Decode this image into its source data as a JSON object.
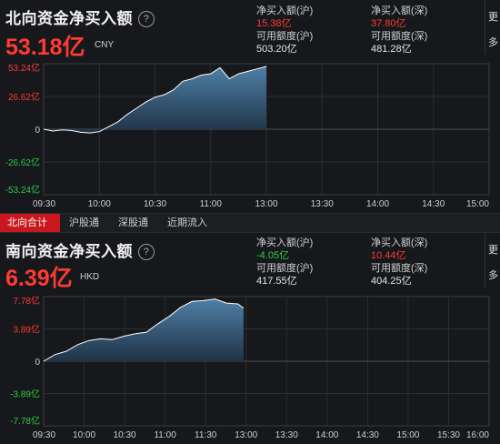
{
  "north": {
    "title": "北向资金净买入额",
    "help_icon": "?",
    "big_value": "53.18亿",
    "currency": "CNY",
    "stats": {
      "buy_sh_label": "净买入额(沪)",
      "buy_sh_value": "15.38亿",
      "buy_sz_label": "净买入额(深)",
      "buy_sz_value": "37.80亿",
      "avail_sh_label": "可用额度(沪)",
      "avail_sh_value": "503.20亿",
      "avail_sz_label": "可用额度(深)",
      "avail_sz_value": "481.28亿"
    },
    "more": [
      "更",
      "多"
    ]
  },
  "south": {
    "title": "南向资金净买入额",
    "help_icon": "?",
    "big_value": "6.39亿",
    "currency": "HKD",
    "stats": {
      "buy_sh_label": "净买入额(沪)",
      "buy_sh_value": "-4.05亿",
      "buy_sz_label": "净买入额(深)",
      "buy_sz_value": "10.44亿",
      "avail_sh_label": "可用额度(沪)",
      "avail_sh_value": "417.55亿",
      "avail_sz_label": "可用额度(深)",
      "avail_sz_value": "404.25亿"
    },
    "more": [
      "更",
      "多"
    ]
  },
  "tabs": [
    "北向合计",
    "沪股通",
    "深股通",
    "近期流入"
  ],
  "colors": {
    "up": "#ff3b30",
    "down": "#2ecc40",
    "area_top": "#4f7fa6",
    "area_bottom": "#1f3347",
    "line": "#ffffff"
  },
  "chart_data": [
    {
      "type": "area",
      "y_ticks": [
        "53.24亿",
        "26.62亿",
        "0",
        "-26.62亿",
        "-53.24亿"
      ],
      "x_ticks": [
        "09:30",
        "10:00",
        "10:30",
        "11:00",
        "13:00",
        "13:30",
        "14:00",
        "14:30",
        "15:00"
      ],
      "ylim": [
        -53.24,
        53.24
      ],
      "x_minutes": [
        0,
        240
      ],
      "series": [
        {
          "x": [
            0,
            5,
            10,
            15,
            20,
            25,
            30,
            35,
            40,
            45,
            50,
            55,
            60,
            65,
            70,
            75,
            80,
            85,
            90,
            95,
            100,
            105,
            110,
            115,
            120
          ],
          "values": [
            0,
            -1.5,
            -0.5,
            -1,
            -2.5,
            -3,
            -2,
            2,
            6,
            12,
            17,
            22,
            26,
            28,
            32,
            39,
            41,
            44,
            45,
            50,
            41,
            45,
            47,
            49,
            51
          ]
        }
      ]
    },
    {
      "type": "area",
      "y_ticks": [
        "7.78亿",
        "3.89亿",
        "0",
        "-3.89亿",
        "-7.78亿"
      ],
      "x_ticks": [
        "09:30",
        "10:00",
        "10:30",
        "11:00",
        "11:30",
        "13:00",
        "13:30",
        "14:00",
        "14:30",
        "15:00",
        "15:30",
        "16:00"
      ],
      "ylim": [
        -7.78,
        7.78
      ],
      "x_minutes": [
        0,
        390
      ],
      "series": [
        {
          "x": [
            0,
            10,
            20,
            30,
            40,
            50,
            60,
            70,
            80,
            90,
            100,
            110,
            120,
            130,
            140,
            150,
            160,
            170,
            175
          ],
          "values": [
            0,
            0.8,
            1.2,
            2.0,
            2.5,
            2.7,
            2.6,
            3.0,
            3.3,
            3.5,
            4.5,
            5.4,
            6.5,
            7.2,
            7.3,
            7.5,
            7.0,
            6.9,
            6.4
          ]
        }
      ]
    }
  ]
}
